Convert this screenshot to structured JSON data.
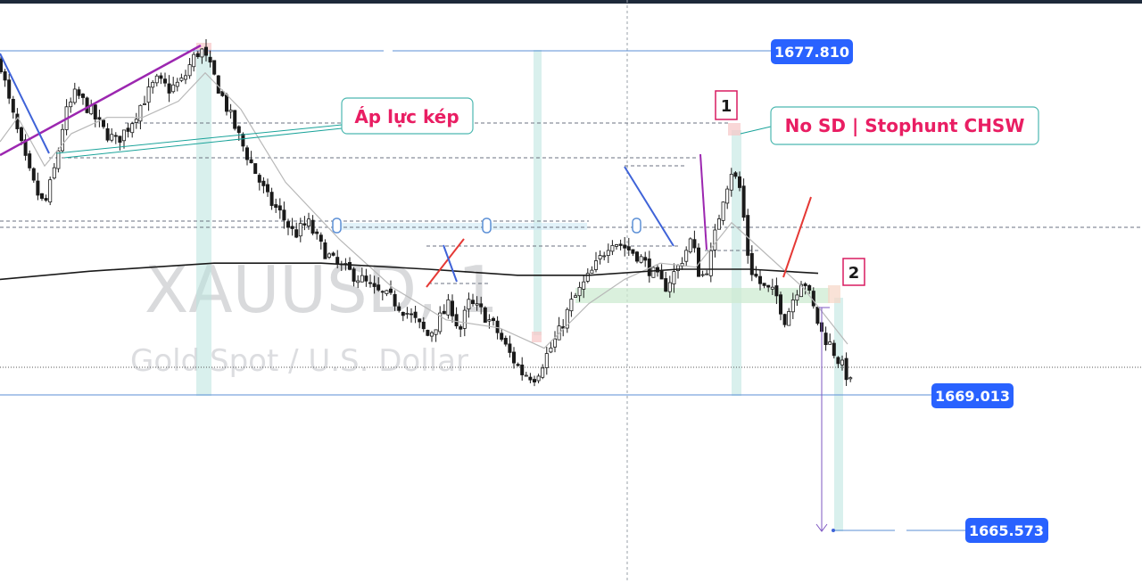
{
  "chart_data": {
    "type": "candlestick",
    "title": "",
    "symbol": "XAUUSD, 1",
    "description": "Gold Spot / U.S. Dollar",
    "price_labels": [
      {
        "name": "high-level",
        "value": 1677.81,
        "text": "1677.810"
      },
      {
        "name": "support-level",
        "value": 1669.013,
        "text": "1669.013"
      },
      {
        "name": "target-level",
        "value": 1665.573,
        "text": "1665.573"
      }
    ],
    "annotations": [
      {
        "id": "ap-luc-kep",
        "text": "Áp lực kép"
      },
      {
        "id": "no-sd",
        "text": "No SD | Stophunt CHSW"
      },
      {
        "id": "marker-1",
        "text": "1"
      },
      {
        "id": "marker-2",
        "text": "2"
      }
    ],
    "close_path": [
      [
        0,
        1677.6
      ],
      [
        10,
        1676.6
      ],
      [
        20,
        1675.8
      ],
      [
        30,
        1675.0
      ],
      [
        40,
        1674.4
      ],
      [
        50,
        1674.0
      ],
      [
        62,
        1675.0
      ],
      [
        72,
        1676.2
      ],
      [
        85,
        1676.8
      ],
      [
        100,
        1676.4
      ],
      [
        115,
        1675.9
      ],
      [
        130,
        1675.6
      ],
      [
        145,
        1676.0
      ],
      [
        160,
        1676.6
      ],
      [
        175,
        1677.1
      ],
      [
        190,
        1676.9
      ],
      [
        205,
        1677.1
      ],
      [
        215,
        1677.6
      ],
      [
        225,
        1677.9
      ],
      [
        240,
        1677.2
      ],
      [
        255,
        1676.4
      ],
      [
        270,
        1675.6
      ],
      [
        285,
        1674.9
      ],
      [
        300,
        1674.2
      ],
      [
        315,
        1673.8
      ],
      [
        330,
        1673.3
      ],
      [
        345,
        1673.6
      ],
      [
        360,
        1673.0
      ],
      [
        375,
        1672.6
      ],
      [
        390,
        1672.4
      ],
      [
        405,
        1672.2
      ],
      [
        420,
        1671.9
      ],
      [
        440,
        1671.7
      ],
      [
        460,
        1671.3
      ],
      [
        480,
        1670.8
      ],
      [
        495,
        1671.3
      ],
      [
        505,
        1671.6
      ],
      [
        515,
        1670.9
      ],
      [
        525,
        1671.6
      ],
      [
        540,
        1671.4
      ],
      [
        555,
        1671.0
      ],
      [
        570,
        1670.4
      ],
      [
        585,
        1669.9
      ],
      [
        600,
        1669.8
      ],
      [
        612,
        1670.3
      ],
      [
        625,
        1670.8
      ],
      [
        640,
        1671.6
      ],
      [
        655,
        1672.1
      ],
      [
        670,
        1672.6
      ],
      [
        685,
        1673.2
      ],
      [
        700,
        1673.0
      ],
      [
        715,
        1672.8
      ],
      [
        730,
        1672.4
      ],
      [
        745,
        1672.0
      ],
      [
        760,
        1672.5
      ],
      [
        775,
        1673.2
      ],
      [
        785,
        1672.2
      ],
      [
        795,
        1672.6
      ],
      [
        810,
        1674.2
      ],
      [
        820,
        1674.9
      ],
      [
        830,
        1674.4
      ],
      [
        840,
        1672.5
      ],
      [
        855,
        1672.0
      ],
      [
        870,
        1671.8
      ],
      [
        880,
        1671.2
      ],
      [
        890,
        1671.8
      ],
      [
        900,
        1672.3
      ],
      [
        910,
        1671.6
      ],
      [
        920,
        1670.9
      ],
      [
        930,
        1670.6
      ],
      [
        940,
        1670.2
      ],
      [
        950,
        1669.8
      ],
      [
        957,
        1669.4
      ]
    ],
    "ma_slow": [
      [
        0,
        1672.2
      ],
      [
        100,
        1672.4
      ],
      [
        240,
        1672.6
      ],
      [
        360,
        1672.6
      ],
      [
        480,
        1672.45
      ],
      [
        580,
        1672.3
      ],
      [
        660,
        1672.3
      ],
      [
        760,
        1672.45
      ],
      [
        840,
        1672.45
      ],
      [
        917,
        1672.35
      ]
    ],
    "ma_fast": [
      [
        0,
        1675.6
      ],
      [
        20,
        1676.2
      ],
      [
        50,
        1675.0
      ],
      [
        80,
        1675.8
      ],
      [
        120,
        1676.2
      ],
      [
        160,
        1676.2
      ],
      [
        200,
        1676.6
      ],
      [
        230,
        1677.3
      ],
      [
        270,
        1676.4
      ],
      [
        320,
        1674.6
      ],
      [
        380,
        1673.2
      ],
      [
        440,
        1672.0
      ],
      [
        500,
        1671.2
      ],
      [
        560,
        1671.0
      ],
      [
        610,
        1670.5
      ],
      [
        660,
        1671.6
      ],
      [
        700,
        1672.2
      ],
      [
        740,
        1672.6
      ],
      [
        780,
        1672.5
      ],
      [
        820,
        1673.6
      ],
      [
        850,
        1673.0
      ],
      [
        900,
        1672.0
      ],
      [
        950,
        1670.6
      ]
    ],
    "ylim": [
      1664.7,
      1679.1
    ]
  }
}
